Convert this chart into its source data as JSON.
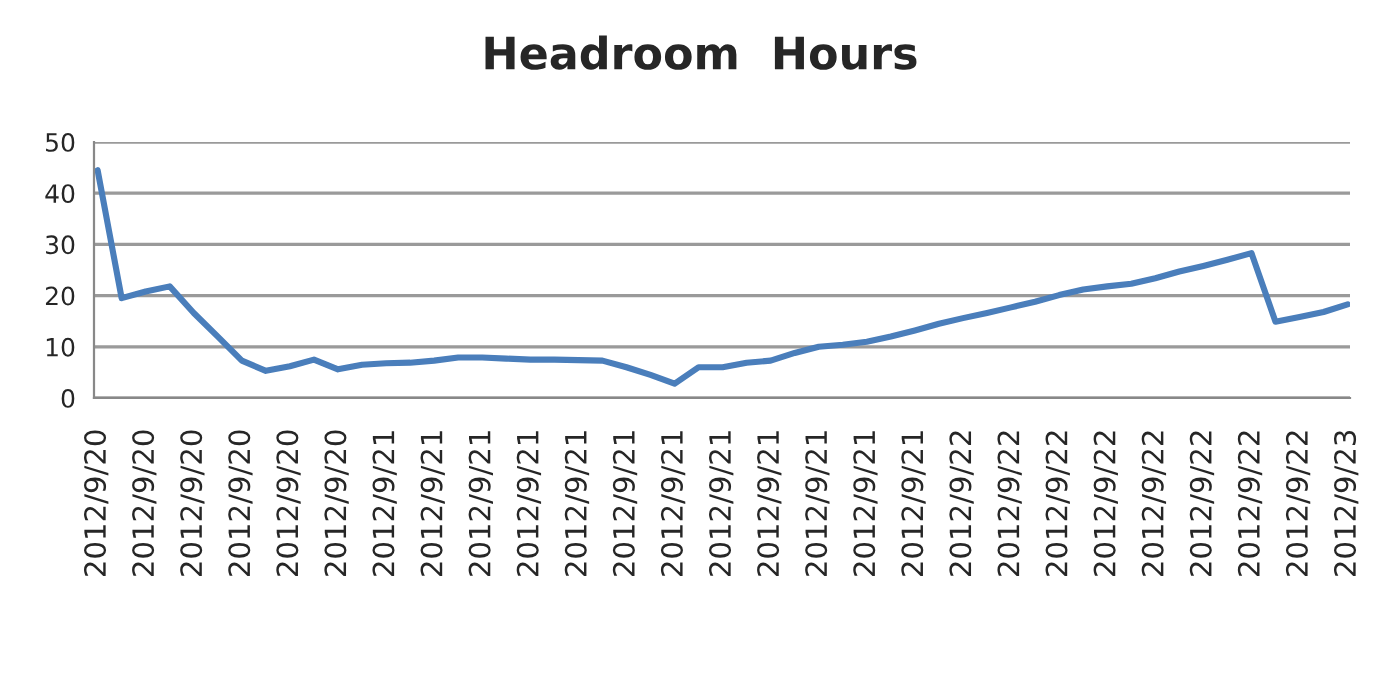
{
  "chart_data": {
    "type": "line",
    "title": "Headroom  Hours",
    "categories": [
      "2012/9/20",
      null,
      "2012/9/20",
      null,
      "2012/9/20",
      null,
      "2012/9/20",
      null,
      "2012/9/20",
      null,
      "2012/9/20",
      null,
      "2012/9/21",
      null,
      "2012/9/21",
      null,
      "2012/9/21",
      null,
      "2012/9/21",
      null,
      "2012/9/21",
      null,
      "2012/9/21",
      null,
      "2012/9/21",
      null,
      "2012/9/21",
      null,
      "2012/9/21",
      null,
      "2012/9/21",
      null,
      "2012/9/21",
      null,
      "2012/9/21",
      null,
      "2012/9/22",
      null,
      "2012/9/22",
      null,
      "2012/9/22",
      null,
      "2012/9/22",
      null,
      "2012/9/22",
      null,
      "2012/9/22",
      null,
      "2012/9/22",
      null,
      "2012/9/22",
      null,
      "2012/9/23"
    ],
    "series": [
      {
        "color": "#4a7ebb",
        "values": [
          44.5,
          19.5,
          20.8,
          21.8,
          16.6,
          12,
          7.3,
          5.3,
          6.2,
          7.5,
          5.6,
          6.5,
          6.8,
          6.9,
          7.3,
          7.9,
          7.9,
          7.7,
          7.5,
          7.5,
          7.4,
          7.3,
          6,
          4.5,
          2.8,
          6,
          6,
          6.9,
          7.3,
          8.8,
          10,
          10.4,
          11,
          12,
          13.2,
          14.5,
          15.6,
          16.6,
          17.7,
          18.8,
          20.1,
          21.2,
          21.8,
          22.3,
          23.4,
          24.7,
          25.8,
          27,
          28.3,
          14.9,
          15.8,
          16.8,
          18.3
        ]
      }
    ],
    "ylim": [
      0,
      50
    ],
    "yticks": [
      0,
      10,
      20,
      30,
      40,
      50
    ],
    "grid": "y",
    "marker": "none",
    "line_style": "solid"
  }
}
